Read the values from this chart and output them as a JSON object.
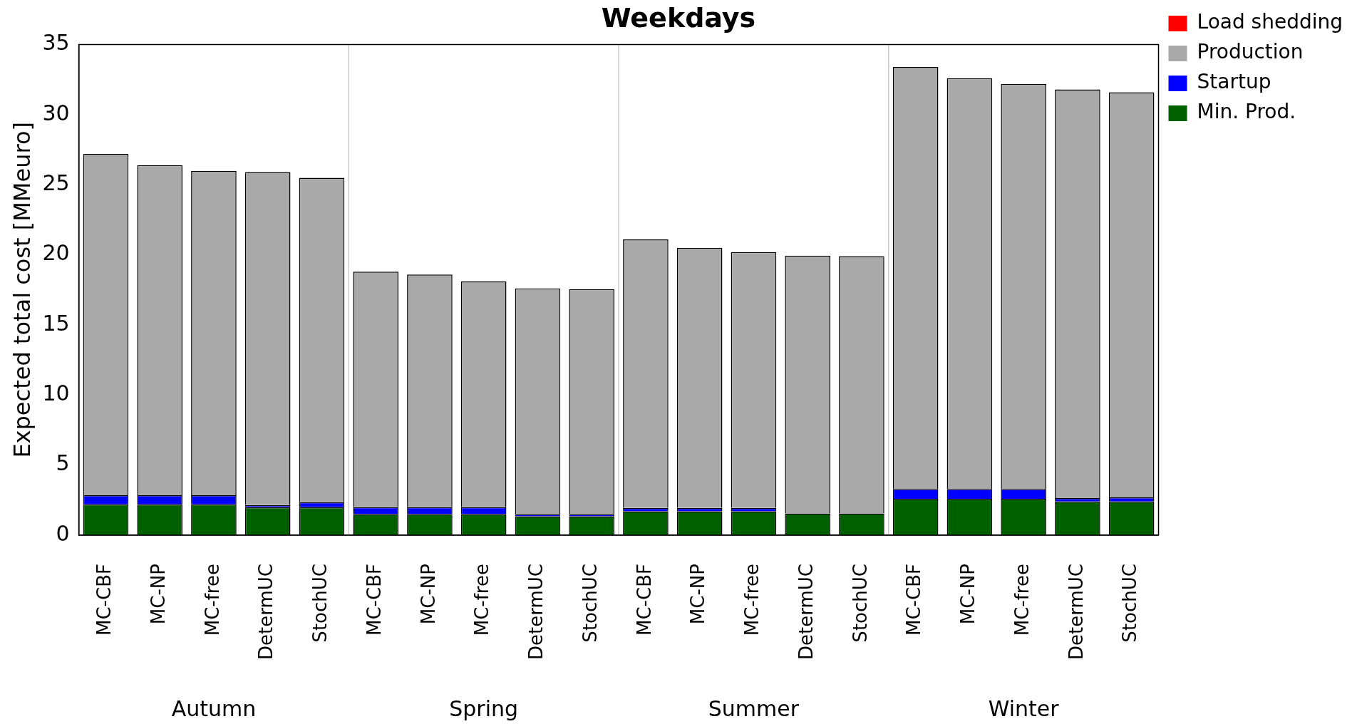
{
  "chart_data": {
    "type": "bar",
    "title": "Weekdays",
    "ylabel": "Expected total cost [MMeuro]",
    "stacked": true,
    "categories": [
      "MC-CBF",
      "MC-NP",
      "MC-free",
      "DetermUC",
      "StochUC",
      "MC-CBF",
      "MC-NP",
      "MC-free",
      "DetermUC",
      "StochUC",
      "MC-CBF",
      "MC-NP",
      "MC-free",
      "DetermUC",
      "StochUC",
      "MC-CBF",
      "MC-NP",
      "MC-free",
      "DetermUC",
      "StochUC"
    ],
    "series": [
      {
        "name": "Min. Prod.",
        "color": "#006000",
        "values": [
          2.2,
          2.2,
          2.2,
          2.0,
          2.0,
          1.5,
          1.5,
          1.5,
          1.35,
          1.35,
          1.7,
          1.7,
          1.7,
          1.55,
          1.55,
          2.6,
          2.6,
          2.6,
          2.4,
          2.4
        ]
      },
      {
        "name": "Startup",
        "color": "#0000ff",
        "values": [
          0.65,
          0.65,
          0.65,
          0.15,
          0.35,
          0.5,
          0.5,
          0.5,
          0.15,
          0.15,
          0.25,
          0.25,
          0.25,
          null,
          null,
          0.7,
          0.7,
          0.7,
          0.25,
          0.3
        ]
      },
      {
        "name": "Production",
        "color": "#a9a9a9",
        "values": [
          24.35,
          23.55,
          23.15,
          23.75,
          23.15,
          16.8,
          16.6,
          16.1,
          16.1,
          16.05,
          19.15,
          18.55,
          18.25,
          18.4,
          18.35,
          30.1,
          29.3,
          28.9,
          29.15,
          28.9
        ]
      },
      {
        "name": "Load shedding",
        "color": "#ff0000",
        "values": [
          0,
          0,
          0,
          0,
          0,
          0,
          0,
          0,
          0,
          0,
          0,
          0,
          0,
          0,
          0,
          0,
          0,
          0,
          0,
          0
        ]
      }
    ],
    "ylim": [
      0,
      35
    ],
    "yticks": [
      0,
      5,
      10,
      15,
      20,
      25,
      30,
      35
    ],
    "legend": "top right",
    "annotations": [
      "Autumn",
      "Spring",
      "Summer",
      "Winter"
    ]
  }
}
